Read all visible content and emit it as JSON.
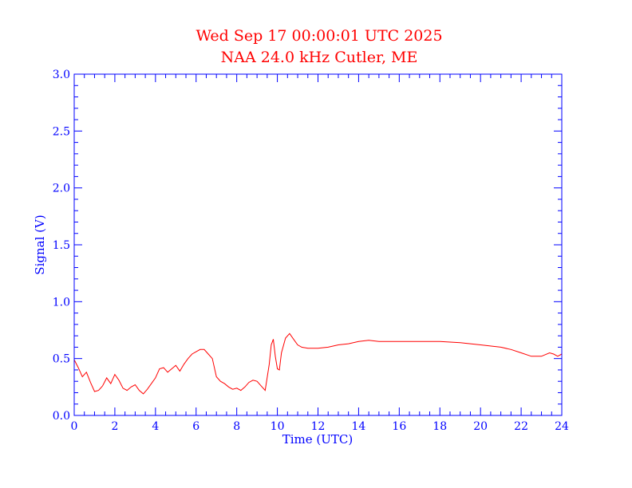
{
  "colors": {
    "title": "#ff0000",
    "axes": "#0000ff",
    "series": "#ff0000",
    "background": "#ffffff"
  },
  "chart_data": {
    "type": "line",
    "title": "Wed Sep 17 00:00:01 UTC 2025",
    "subtitle": "NAA 24.0 kHz Cutler, ME",
    "xlabel": "Time (UTC)",
    "ylabel": "Signal (V)",
    "xlim": [
      0,
      24
    ],
    "ylim": [
      0.0,
      3.0
    ],
    "xticks": [
      "0",
      "2",
      "4",
      "6",
      "8",
      "10",
      "12",
      "14",
      "16",
      "18",
      "20",
      "22",
      "24"
    ],
    "yticks": [
      "0.0",
      "0.5",
      "1.0",
      "1.5",
      "2.0",
      "2.5",
      "3.0"
    ],
    "grid": false,
    "series": [
      {
        "x": [
          0,
          0.2,
          0.4,
          0.6,
          0.8,
          1.0,
          1.2,
          1.4,
          1.6,
          1.8,
          2.0,
          2.2,
          2.4,
          2.6,
          2.8,
          3.0,
          3.2,
          3.4,
          3.6,
          3.8,
          4.0,
          4.2,
          4.4,
          4.6,
          4.8,
          5.0,
          5.2,
          5.4,
          5.6,
          5.8,
          6.0,
          6.2,
          6.4,
          6.6,
          6.8,
          7.0,
          7.2,
          7.4,
          7.6,
          7.8,
          8.0,
          8.2,
          8.4,
          8.6,
          8.8,
          9.0,
          9.2,
          9.4,
          9.6,
          9.7,
          9.8,
          9.9,
          10.0,
          10.1,
          10.2,
          10.4,
          10.6,
          10.8,
          11.0,
          11.2,
          11.5,
          12.0,
          12.5,
          13.0,
          13.5,
          14.0,
          14.5,
          15.0,
          16.0,
          17.0,
          18.0,
          19.0,
          20.0,
          21.0,
          21.5,
          22.0,
          22.5,
          23.0,
          23.4,
          23.6,
          23.8,
          24.0
        ],
        "values": [
          0.49,
          0.42,
          0.34,
          0.38,
          0.29,
          0.21,
          0.22,
          0.26,
          0.33,
          0.28,
          0.36,
          0.31,
          0.24,
          0.22,
          0.25,
          0.27,
          0.22,
          0.19,
          0.23,
          0.28,
          0.33,
          0.41,
          0.42,
          0.38,
          0.41,
          0.44,
          0.39,
          0.45,
          0.5,
          0.54,
          0.56,
          0.58,
          0.58,
          0.54,
          0.5,
          0.34,
          0.3,
          0.28,
          0.25,
          0.23,
          0.24,
          0.22,
          0.25,
          0.29,
          0.31,
          0.3,
          0.26,
          0.22,
          0.45,
          0.62,
          0.67,
          0.52,
          0.41,
          0.4,
          0.55,
          0.68,
          0.72,
          0.67,
          0.62,
          0.6,
          0.59,
          0.59,
          0.6,
          0.62,
          0.63,
          0.65,
          0.66,
          0.65,
          0.65,
          0.65,
          0.65,
          0.64,
          0.62,
          0.6,
          0.58,
          0.55,
          0.52,
          0.52,
          0.55,
          0.54,
          0.52,
          0.54
        ]
      }
    ]
  }
}
